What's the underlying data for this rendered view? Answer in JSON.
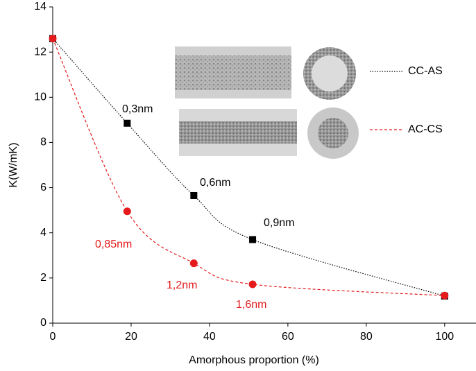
{
  "chart_data": {
    "type": "scatter",
    "x_label": "Amorphous proportion (%)",
    "y_label": "K(W/mK)",
    "xlim": [
      0,
      108
    ],
    "xticks": [
      0,
      20,
      40,
      60,
      80,
      100
    ],
    "ylim": [
      0,
      14
    ],
    "yticks": [
      0,
      2,
      4,
      6,
      8,
      10,
      12,
      14
    ],
    "legend": "right",
    "series": [
      {
        "name": "CC-AS",
        "color": "#000000",
        "marker": "square",
        "line_style": "dotted",
        "x": [
          0,
          19,
          36,
          51,
          100
        ],
        "values": [
          12.6,
          8.85,
          5.65,
          3.7,
          1.2
        ]
      },
      {
        "name": "AC-CS",
        "color": "#e41a1c",
        "marker": "circle",
        "line_style": "dashed",
        "x": [
          0,
          19,
          36,
          51,
          100
        ],
        "values": [
          12.6,
          4.95,
          2.65,
          1.72,
          1.22
        ]
      }
    ],
    "annotations": [
      {
        "text": "0,3nm",
        "color": "#000000"
      },
      {
        "text": "0,6nm",
        "color": "#000000"
      },
      {
        "text": "0,9nm",
        "color": "#000000"
      },
      {
        "text": "0,85nm",
        "color": "#e41a1c"
      },
      {
        "text": "1,2nm",
        "color": "#e41a1c"
      },
      {
        "text": "1,6nm",
        "color": "#e41a1c"
      }
    ]
  }
}
